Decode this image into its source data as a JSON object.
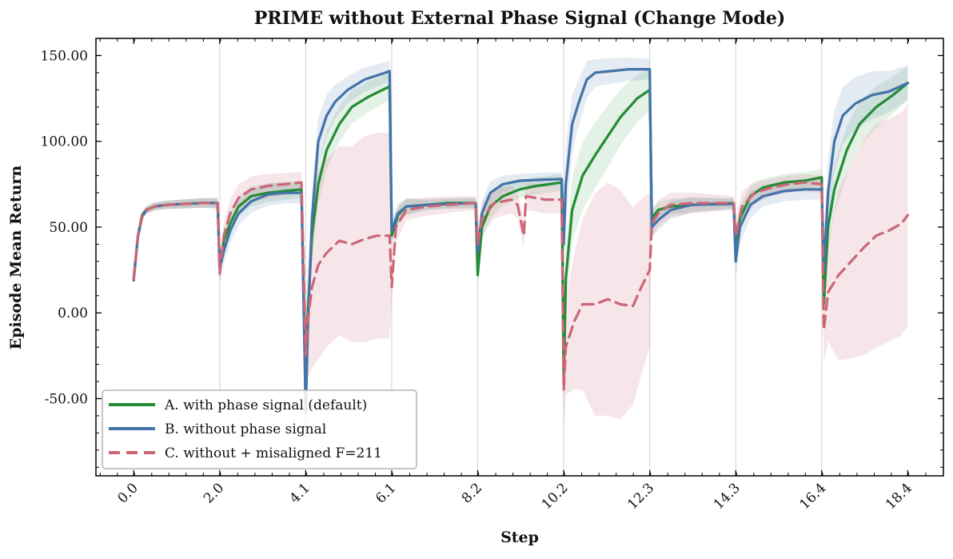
{
  "chart_data": {
    "type": "line",
    "title": "PRIME without External Phase Signal (Change Mode)",
    "xlabel": "Step",
    "ylabel": "Episode Mean Return",
    "x_tick_labels": [
      "0.0",
      "2.0",
      "4.1",
      "6.1",
      "8.2",
      "10.2",
      "12.3",
      "14.3",
      "16.4",
      "18.4"
    ],
    "x_tick_values": [
      0.0,
      2.05,
      4.1,
      6.15,
      8.2,
      10.25,
      12.3,
      14.35,
      16.4,
      18.45
    ],
    "y_tick_labels": [
      "-50.00",
      "0.00",
      "50.00",
      "100.00",
      "150.00"
    ],
    "y_tick_values": [
      -50,
      0,
      50,
      100,
      150
    ],
    "xlim": [
      -0.9,
      19.3
    ],
    "ylim": [
      -95,
      160
    ],
    "phase_boundaries": [
      2.05,
      4.1,
      6.15,
      8.2,
      10.25,
      12.3,
      14.35,
      16.4
    ],
    "grid": "vertical lines at phase boundaries",
    "legend_position": "lower-left",
    "series": [
      {
        "name": "A. with phase signal (default)",
        "color": "#238b35",
        "dash": "solid",
        "band_opacity": 0.12,
        "points": [
          [
            0.0,
            20
          ],
          [
            0.1,
            45
          ],
          [
            0.2,
            57
          ],
          [
            0.3,
            60
          ],
          [
            0.5,
            62
          ],
          [
            0.8,
            63
          ],
          [
            1.2,
            63.5
          ],
          [
            1.6,
            64
          ],
          [
            2.0,
            64
          ],
          [
            2.05,
            28
          ],
          [
            2.15,
            42
          ],
          [
            2.3,
            52
          ],
          [
            2.5,
            62
          ],
          [
            2.8,
            68
          ],
          [
            3.2,
            70
          ],
          [
            3.6,
            71
          ],
          [
            4.0,
            72
          ],
          [
            4.1,
            -50
          ],
          [
            4.15,
            0
          ],
          [
            4.25,
            45
          ],
          [
            4.4,
            75
          ],
          [
            4.6,
            95
          ],
          [
            4.9,
            110
          ],
          [
            5.2,
            120
          ],
          [
            5.6,
            126
          ],
          [
            6.1,
            132
          ],
          [
            6.15,
            45
          ],
          [
            6.3,
            57
          ],
          [
            6.5,
            62
          ],
          [
            7.0,
            63
          ],
          [
            7.5,
            64
          ],
          [
            8.15,
            64
          ],
          [
            8.2,
            22
          ],
          [
            8.3,
            50
          ],
          [
            8.5,
            62
          ],
          [
            8.8,
            68
          ],
          [
            9.2,
            72
          ],
          [
            9.6,
            74
          ],
          [
            10.2,
            76
          ],
          [
            10.25,
            -40
          ],
          [
            10.3,
            20
          ],
          [
            10.45,
            60
          ],
          [
            10.7,
            80
          ],
          [
            11.0,
            92
          ],
          [
            11.3,
            103
          ],
          [
            11.6,
            114
          ],
          [
            12.0,
            125
          ],
          [
            12.3,
            130
          ],
          [
            12.35,
            55
          ],
          [
            12.5,
            60
          ],
          [
            12.8,
            62
          ],
          [
            13.3,
            63
          ],
          [
            14.3,
            64
          ],
          [
            14.35,
            38
          ],
          [
            14.45,
            55
          ],
          [
            14.7,
            68
          ],
          [
            15.0,
            73
          ],
          [
            15.5,
            76
          ],
          [
            16.0,
            77
          ],
          [
            16.4,
            79
          ],
          [
            16.45,
            5
          ],
          [
            16.55,
            50
          ],
          [
            16.7,
            72
          ],
          [
            17.0,
            95
          ],
          [
            17.3,
            110
          ],
          [
            17.7,
            120
          ],
          [
            18.1,
            127
          ],
          [
            18.45,
            134
          ]
        ],
        "band": [
          [
            0.0,
            2
          ],
          [
            2.0,
            3
          ],
          [
            2.05,
            8
          ],
          [
            2.5,
            6
          ],
          [
            4.0,
            5
          ],
          [
            4.1,
            15
          ],
          [
            4.4,
            12
          ],
          [
            5.0,
            10
          ],
          [
            6.1,
            8
          ],
          [
            6.15,
            6
          ],
          [
            7.0,
            3
          ],
          [
            8.15,
            3
          ],
          [
            8.2,
            8
          ],
          [
            9.0,
            5
          ],
          [
            10.2,
            5
          ],
          [
            10.25,
            18
          ],
          [
            10.7,
            20
          ],
          [
            11.3,
            18
          ],
          [
            12.3,
            12
          ],
          [
            12.35,
            5
          ],
          [
            14.3,
            3
          ],
          [
            14.35,
            8
          ],
          [
            15.0,
            5
          ],
          [
            16.4,
            5
          ],
          [
            16.45,
            15
          ],
          [
            17.0,
            14
          ],
          [
            18.45,
            10
          ]
        ]
      },
      {
        "name": "B. without phase signal",
        "color": "#4373a8",
        "dash": "solid",
        "band_opacity": 0.14,
        "points": [
          [
            0.0,
            19
          ],
          [
            0.1,
            44
          ],
          [
            0.2,
            56
          ],
          [
            0.3,
            60
          ],
          [
            0.5,
            62
          ],
          [
            0.8,
            63
          ],
          [
            1.2,
            63.5
          ],
          [
            1.6,
            64
          ],
          [
            2.0,
            64
          ],
          [
            2.05,
            26
          ],
          [
            2.15,
            36
          ],
          [
            2.3,
            48
          ],
          [
            2.5,
            58
          ],
          [
            2.8,
            65
          ],
          [
            3.2,
            69
          ],
          [
            3.6,
            70
          ],
          [
            4.0,
            70
          ],
          [
            4.1,
            -58
          ],
          [
            4.15,
            -10
          ],
          [
            4.25,
            55
          ],
          [
            4.4,
            100
          ],
          [
            4.6,
            115
          ],
          [
            4.8,
            123
          ],
          [
            5.1,
            130
          ],
          [
            5.5,
            136
          ],
          [
            6.0,
            140
          ],
          [
            6.1,
            141
          ],
          [
            6.15,
            48
          ],
          [
            6.3,
            58
          ],
          [
            6.5,
            62
          ],
          [
            7.0,
            63
          ],
          [
            7.5,
            63.5
          ],
          [
            8.15,
            64
          ],
          [
            8.2,
            35
          ],
          [
            8.3,
            58
          ],
          [
            8.5,
            70
          ],
          [
            8.8,
            75
          ],
          [
            9.2,
            77
          ],
          [
            9.6,
            77.5
          ],
          [
            10.2,
            78
          ],
          [
            10.25,
            40
          ],
          [
            10.3,
            75
          ],
          [
            10.45,
            110
          ],
          [
            10.6,
            122
          ],
          [
            10.8,
            136
          ],
          [
            11.0,
            140
          ],
          [
            11.4,
            141
          ],
          [
            11.8,
            142
          ],
          [
            12.3,
            142
          ],
          [
            12.35,
            50
          ],
          [
            12.5,
            54
          ],
          [
            12.8,
            60
          ],
          [
            13.3,
            63
          ],
          [
            14.3,
            63.5
          ],
          [
            14.35,
            30
          ],
          [
            14.45,
            50
          ],
          [
            14.7,
            63
          ],
          [
            15.0,
            68
          ],
          [
            15.5,
            71
          ],
          [
            16.0,
            72
          ],
          [
            16.4,
            72
          ],
          [
            16.45,
            25
          ],
          [
            16.55,
            70
          ],
          [
            16.7,
            100
          ],
          [
            16.9,
            115
          ],
          [
            17.2,
            122
          ],
          [
            17.6,
            127
          ],
          [
            18.0,
            129
          ],
          [
            18.45,
            134
          ]
        ],
        "band": [
          [
            0.0,
            2
          ],
          [
            2.0,
            3
          ],
          [
            2.05,
            8
          ],
          [
            2.5,
            7
          ],
          [
            4.0,
            6
          ],
          [
            4.1,
            18
          ],
          [
            4.4,
            14
          ],
          [
            5.0,
            8
          ],
          [
            6.1,
            6
          ],
          [
            6.15,
            6
          ],
          [
            7.0,
            3
          ],
          [
            8.15,
            3
          ],
          [
            8.2,
            8
          ],
          [
            9.0,
            4
          ],
          [
            10.2,
            4
          ],
          [
            10.25,
            25
          ],
          [
            10.5,
            15
          ],
          [
            11.0,
            8
          ],
          [
            12.3,
            6
          ],
          [
            12.35,
            6
          ],
          [
            14.3,
            3
          ],
          [
            14.35,
            10
          ],
          [
            15.0,
            6
          ],
          [
            16.4,
            6
          ],
          [
            16.45,
            20
          ],
          [
            17.0,
            16
          ],
          [
            17.6,
            14
          ],
          [
            18.45,
            10
          ]
        ]
      },
      {
        "name": "C. without + misaligned F=211",
        "color": "#cc6677",
        "dash": "dashed",
        "band_opacity": 0.16,
        "points": [
          [
            0.0,
            20
          ],
          [
            0.1,
            45
          ],
          [
            0.2,
            56
          ],
          [
            0.3,
            60
          ],
          [
            0.5,
            62
          ],
          [
            0.8,
            63
          ],
          [
            1.2,
            63.5
          ],
          [
            1.6,
            64
          ],
          [
            2.0,
            64
          ],
          [
            2.05,
            23
          ],
          [
            2.15,
            45
          ],
          [
            2.3,
            58
          ],
          [
            2.5,
            67
          ],
          [
            2.8,
            72
          ],
          [
            3.2,
            74
          ],
          [
            3.6,
            75
          ],
          [
            4.0,
            76
          ],
          [
            4.1,
            -25
          ],
          [
            4.15,
            -5
          ],
          [
            4.25,
            15
          ],
          [
            4.4,
            28
          ],
          [
            4.6,
            35
          ],
          [
            4.9,
            42
          ],
          [
            5.2,
            40
          ],
          [
            5.5,
            43
          ],
          [
            5.8,
            45
          ],
          [
            6.1,
            45
          ],
          [
            6.15,
            15
          ],
          [
            6.25,
            50
          ],
          [
            6.5,
            60
          ],
          [
            7.0,
            62
          ],
          [
            7.5,
            63
          ],
          [
            8.15,
            64
          ],
          [
            8.2,
            40
          ],
          [
            8.3,
            55
          ],
          [
            8.6,
            64
          ],
          [
            9.0,
            66
          ],
          [
            9.15,
            63
          ],
          [
            9.3,
            45
          ],
          [
            9.35,
            68
          ],
          [
            9.8,
            66
          ],
          [
            10.2,
            66
          ],
          [
            10.25,
            -45
          ],
          [
            10.3,
            -20
          ],
          [
            10.5,
            -5
          ],
          [
            10.7,
            5
          ],
          [
            11.0,
            5
          ],
          [
            11.3,
            8
          ],
          [
            11.6,
            5
          ],
          [
            11.9,
            4
          ],
          [
            12.1,
            15
          ],
          [
            12.3,
            25
          ],
          [
            12.35,
            52
          ],
          [
            12.5,
            58
          ],
          [
            12.8,
            63
          ],
          [
            13.3,
            64
          ],
          [
            14.3,
            64
          ],
          [
            14.35,
            45
          ],
          [
            14.5,
            62
          ],
          [
            14.8,
            70
          ],
          [
            15.2,
            73
          ],
          [
            15.6,
            75
          ],
          [
            16.0,
            76
          ],
          [
            16.4,
            75
          ],
          [
            16.45,
            -10
          ],
          [
            16.55,
            12
          ],
          [
            16.8,
            22
          ],
          [
            17.1,
            30
          ],
          [
            17.4,
            38
          ],
          [
            17.7,
            45
          ],
          [
            18.0,
            48
          ],
          [
            18.3,
            52
          ],
          [
            18.45,
            57
          ]
        ],
        "band": [
          [
            0.0,
            2
          ],
          [
            2.0,
            3
          ],
          [
            2.05,
            8
          ],
          [
            2.5,
            8
          ],
          [
            4.0,
            6
          ],
          [
            4.1,
            25
          ],
          [
            4.3,
            55
          ],
          [
            4.6,
            55
          ],
          [
            5.0,
            55
          ],
          [
            5.5,
            60
          ],
          [
            6.1,
            60
          ],
          [
            6.15,
            10
          ],
          [
            6.5,
            6
          ],
          [
            8.15,
            4
          ],
          [
            8.2,
            10
          ],
          [
            9.0,
            8
          ],
          [
            10.2,
            8
          ],
          [
            10.25,
            25
          ],
          [
            10.6,
            45
          ],
          [
            11.0,
            65
          ],
          [
            11.5,
            70
          ],
          [
            12.3,
            45
          ],
          [
            12.35,
            8
          ],
          [
            14.3,
            4
          ],
          [
            14.35,
            10
          ],
          [
            15.0,
            5
          ],
          [
            16.4,
            5
          ],
          [
            16.45,
            20
          ],
          [
            16.8,
            50
          ],
          [
            17.5,
            65
          ],
          [
            18.45,
            65
          ]
        ]
      }
    ]
  }
}
